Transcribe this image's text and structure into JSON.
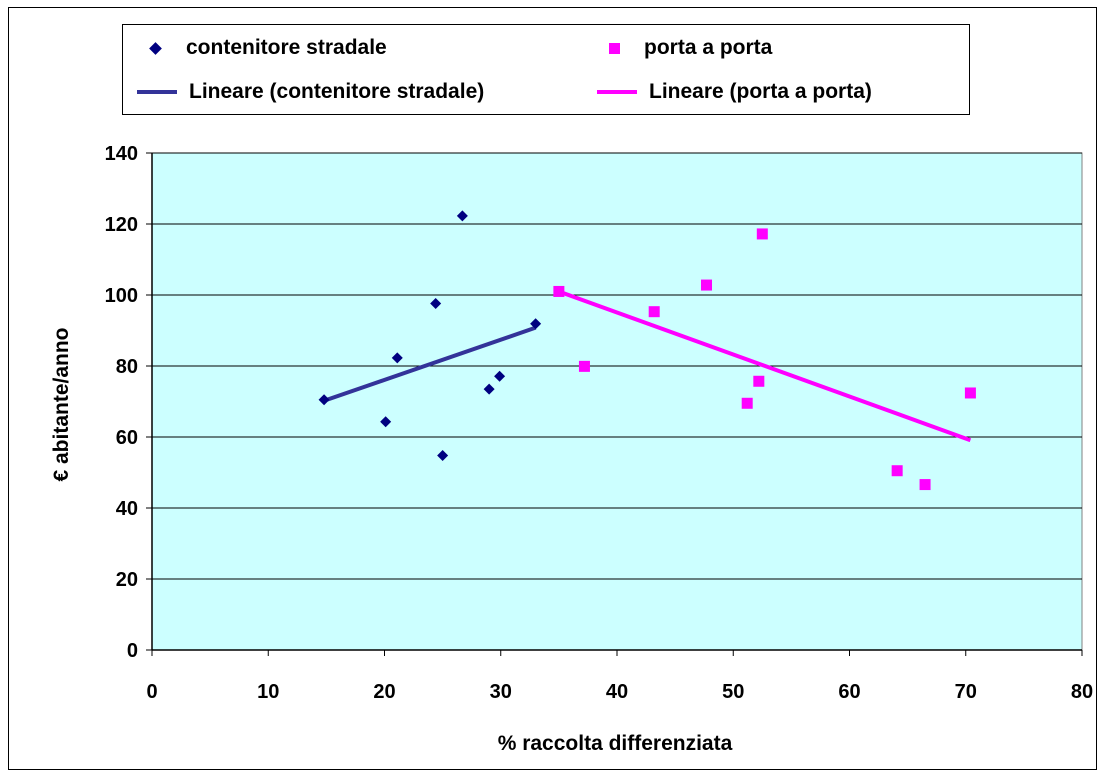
{
  "chart_data": {
    "type": "scatter",
    "title": "",
    "xlabel": "% raccolta differenziata",
    "ylabel": "€ abitante/anno",
    "xlim": [
      0,
      80
    ],
    "ylim": [
      0,
      140
    ],
    "xticks": [
      "0",
      "10",
      "20",
      "30",
      "40",
      "50",
      "60",
      "70",
      "80"
    ],
    "yticks": [
      "0",
      "20",
      "40",
      "60",
      "80",
      "100",
      "120",
      "140"
    ],
    "grid": "horizontal",
    "legend_position": "top",
    "plot_background": "#ccffff",
    "series": [
      {
        "name": "contenitore stradale",
        "marker": "diamond",
        "color": "#000080",
        "points": [
          {
            "x": 14.8,
            "y": 70.5
          },
          {
            "x": 20.1,
            "y": 64.3
          },
          {
            "x": 21.1,
            "y": 82.3
          },
          {
            "x": 24.4,
            "y": 97.6
          },
          {
            "x": 25.0,
            "y": 54.8
          },
          {
            "x": 26.7,
            "y": 122.3
          },
          {
            "x": 29.0,
            "y": 73.5
          },
          {
            "x": 29.9,
            "y": 77.1
          },
          {
            "x": 33.0,
            "y": 91.9
          }
        ]
      },
      {
        "name": "porta a porta",
        "marker": "square",
        "color": "#ff00ff",
        "points": [
          {
            "x": 35.0,
            "y": 101.0
          },
          {
            "x": 37.2,
            "y": 79.9
          },
          {
            "x": 43.2,
            "y": 95.3
          },
          {
            "x": 47.7,
            "y": 102.8
          },
          {
            "x": 51.2,
            "y": 69.5
          },
          {
            "x": 52.2,
            "y": 75.7
          },
          {
            "x": 52.5,
            "y": 117.2
          },
          {
            "x": 64.1,
            "y": 50.5
          },
          {
            "x": 66.5,
            "y": 46.6
          },
          {
            "x": 70.4,
            "y": 72.4
          }
        ]
      }
    ],
    "trendlines": [
      {
        "name": "Lineare (contenitore stradale)",
        "color": "#333399",
        "x": [
          14.8,
          33.0
        ],
        "y": [
          70.2,
          90.8
        ]
      },
      {
        "name": "Lineare (porta a porta)",
        "color": "#ff00ff",
        "x": [
          35.0,
          70.4
        ],
        "y": [
          101.0,
          59.1
        ]
      }
    ]
  }
}
